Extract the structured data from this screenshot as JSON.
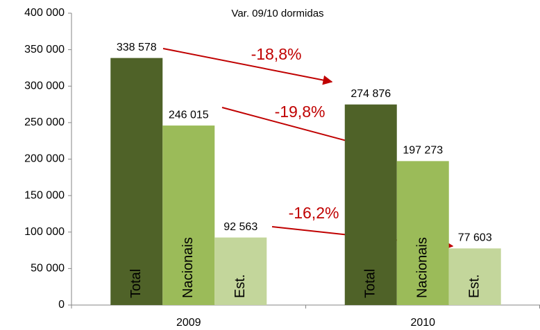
{
  "chart_data": {
    "type": "bar",
    "title": "Var. 09/10 dormidas",
    "categories": [
      "2009",
      "2010"
    ],
    "series": [
      {
        "name": "Total",
        "color": "#4f6228",
        "values": [
          338578,
          274876
        ],
        "value_labels": [
          "338 578",
          "274 876"
        ]
      },
      {
        "name": "Nacionais",
        "color": "#9bbb59",
        "values": [
          246015,
          197273
        ],
        "value_labels": [
          "246 015",
          "197 273"
        ]
      },
      {
        "name": "Est.",
        "color": "#c3d69b",
        "values": [
          92563,
          77603
        ],
        "value_labels": [
          "92 563",
          "77 603"
        ]
      }
    ],
    "annotations": [
      "-18,8%",
      "-19,8%",
      "-16,2%"
    ],
    "ylim": [
      0,
      400000
    ],
    "yticks": [
      0,
      {
        "value": 50000,
        "label": "50 000"
      },
      {
        "value": 100000,
        "label": "100 000"
      },
      {
        "value": 150000,
        "label": "150 000"
      },
      {
        "value": 200000,
        "label": "200 000"
      },
      {
        "value": 250000,
        "label": "250 000"
      },
      {
        "value": 300000,
        "label": "300 000"
      },
      {
        "value": 350000,
        "label": "350 000"
      },
      {
        "value": 400000,
        "label": "400 000"
      }
    ],
    "grid": false
  }
}
